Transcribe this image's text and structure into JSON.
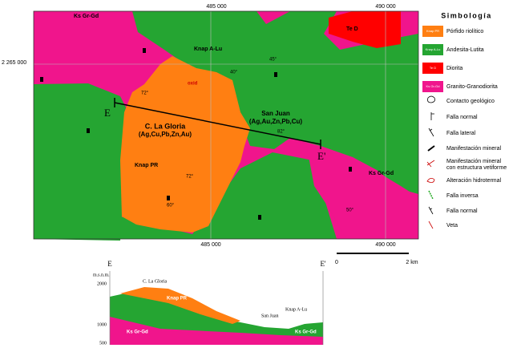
{
  "map": {
    "coords": {
      "top": [
        "485 000",
        "490 000"
      ],
      "bottom": [
        "485 000",
        "490 000"
      ],
      "left": "2 265 000"
    },
    "units": {
      "gr_top": "Ks Gr-Gd",
      "gr_right": "Ks Gr-Gd",
      "diorite": "Te D",
      "andesite": "Knap A-Lu",
      "porphyry": "Knap PR"
    },
    "sites": [
      {
        "name": "C. La Gloria",
        "metals": "(Ag,Cu,Pb,Zn,Au)"
      },
      {
        "name": "San Juan",
        "metals": "(Ag,Au,Zn,Pb,Cu)"
      }
    ],
    "section_ends": [
      "E",
      "E'"
    ],
    "oxid": "oxid",
    "dips": [
      "82°",
      "40°",
      "72°",
      "60°",
      "45°",
      "50°",
      "72°"
    ]
  },
  "legend": {
    "title": "Simbología",
    "units": [
      {
        "code": "Knap PR",
        "name": "Pórfido riolítico"
      },
      {
        "code": "Knap A-Lu",
        "name": "Andesita-Lutita"
      },
      {
        "code": "Te D",
        "name": "Diorita"
      },
      {
        "code": "Ks Gr-Gd",
        "name": "Granito-Granodiorita"
      }
    ],
    "symbols": [
      "Contacto geológico",
      "Falla normal",
      "Falla lateral",
      "Manifestación mineral",
      [
        "Manifestación mineral",
        "con estructura vetiforme"
      ],
      "Alteración hidrotermal",
      "Falla inversa",
      "Falla normal",
      "Veta"
    ],
    "scale": [
      "0",
      "2 km"
    ]
  },
  "section": {
    "ends": [
      "E",
      "E'"
    ],
    "unit": "m.s.n.m.",
    "elevations": [
      "2000",
      "1000",
      "500"
    ],
    "labels": {
      "gloria": "C. La Gloria",
      "pr": "Knap PR",
      "sanjuan": "San Juan",
      "alu": "Knap A-Lu",
      "gr_left": "Ks Gr-Gd",
      "gr_right": "Ks Gr-Gd"
    }
  }
}
